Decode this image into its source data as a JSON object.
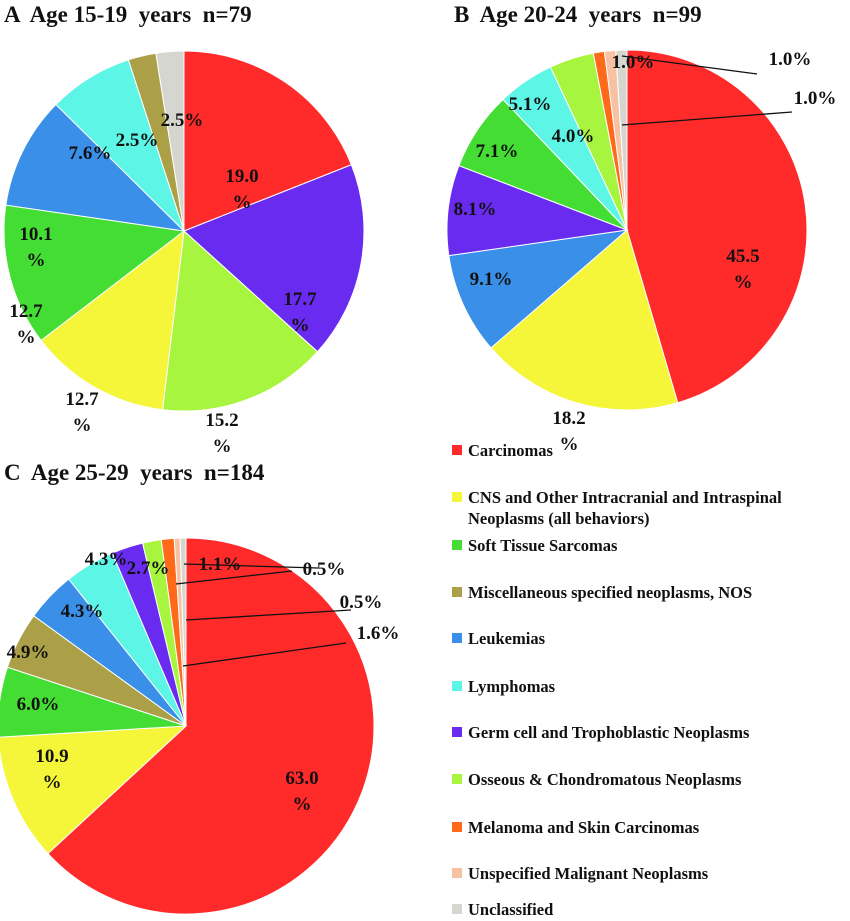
{
  "legend": {
    "items": [
      {
        "key": "carcinomas",
        "label": "Carcinomas",
        "color": "#FF2A2A"
      },
      {
        "key": "cns",
        "label": "CNS and Other Intracranial and Intraspinal Neoplasms (all behaviors)",
        "color": "#F5F53A"
      },
      {
        "key": "soft_tissue",
        "label": "Soft Tissue Sarcomas",
        "color": "#44DD33"
      },
      {
        "key": "misc",
        "label": "Miscellaneous specified neoplasms, NOS",
        "color": "#ABA048"
      },
      {
        "key": "leukemias",
        "label": "Leukemias",
        "color": "#3A8FE8"
      },
      {
        "key": "lymphomas",
        "label": "Lymphomas",
        "color": "#5CF5E6"
      },
      {
        "key": "germ_cell",
        "label": "Germ cell and Trophoblastic Neoplasms",
        "color": "#6A2BF0"
      },
      {
        "key": "osseous",
        "label": "Osseous & Chondromatous Neoplasms",
        "color": "#A8F540"
      },
      {
        "key": "melanoma",
        "label": "Melanoma and Skin Carcinomas",
        "color": "#FF6A1A"
      },
      {
        "key": "unspecified",
        "label": "Unspecified Malignant Neoplasms",
        "color": "#F7C2A4"
      },
      {
        "key": "unclassified",
        "label": "Unclassified",
        "color": "#D6D6D0"
      }
    ]
  },
  "chart_data": [
    {
      "type": "pie",
      "title": "A  Age 15-19  years  n=79",
      "slices": [
        {
          "category": "carcinomas",
          "value": 19.0,
          "label": "19.0\n%"
        },
        {
          "category": "germ_cell",
          "value": 17.7,
          "label": "17.7\n%"
        },
        {
          "category": "osseous",
          "value": 15.2,
          "label": "15.2\n%"
        },
        {
          "category": "cns",
          "value": 12.7,
          "label": "12.7\n%"
        },
        {
          "category": "soft_tissue",
          "value": 12.7,
          "label": "12.7\n%"
        },
        {
          "category": "leukemias",
          "value": 10.1,
          "label": "10.1\n%"
        },
        {
          "category": "lymphomas",
          "value": 7.6,
          "label": "7.6%"
        },
        {
          "category": "misc",
          "value": 2.5,
          "label": "2.5%"
        },
        {
          "category": "unclassified",
          "value": 2.5,
          "label": "2.5%"
        }
      ]
    },
    {
      "type": "pie",
      "title": "B  Age 20-24  years  n=99",
      "slices": [
        {
          "category": "carcinomas",
          "value": 45.5,
          "label": "45.5\n%"
        },
        {
          "category": "cns",
          "value": 18.2,
          "label": "18.2\n%"
        },
        {
          "category": "leukemias",
          "value": 9.1,
          "label": "9.1%"
        },
        {
          "category": "germ_cell",
          "value": 8.1,
          "label": "8.1%"
        },
        {
          "category": "soft_tissue",
          "value": 7.1,
          "label": "7.1%"
        },
        {
          "category": "lymphomas",
          "value": 5.1,
          "label": "5.1%"
        },
        {
          "category": "osseous",
          "value": 4.0,
          "label": "4.0%"
        },
        {
          "category": "melanoma",
          "value": 1.0,
          "label": "1.0%"
        },
        {
          "category": "unspecified",
          "value": 1.0,
          "label": "1.0%"
        },
        {
          "category": "unclassified",
          "value": 1.0,
          "label": "1.0%"
        }
      ]
    },
    {
      "type": "pie",
      "title": "C  Age 25-29  years  n=184",
      "slices": [
        {
          "category": "carcinomas",
          "value": 63.0,
          "label": "63.0\n%"
        },
        {
          "category": "cns",
          "value": 10.9,
          "label": "10.9\n%"
        },
        {
          "category": "soft_tissue",
          "value": 6.0,
          "label": "6.0%"
        },
        {
          "category": "misc",
          "value": 4.9,
          "label": "4.9%"
        },
        {
          "category": "leukemias",
          "value": 4.3,
          "label": "4.3%"
        },
        {
          "category": "lymphomas",
          "value": 4.3,
          "label": "4.3%"
        },
        {
          "category": "germ_cell",
          "value": 2.7,
          "label": "2.7%"
        },
        {
          "category": "osseous",
          "value": 1.6,
          "label": "1.6%"
        },
        {
          "category": "melanoma",
          "value": 1.1,
          "label": "1.1%"
        },
        {
          "category": "unspecified",
          "value": 0.5,
          "label": "0.5%"
        },
        {
          "category": "unclassified",
          "value": 0.5,
          "label": "0.5%"
        }
      ]
    }
  ]
}
